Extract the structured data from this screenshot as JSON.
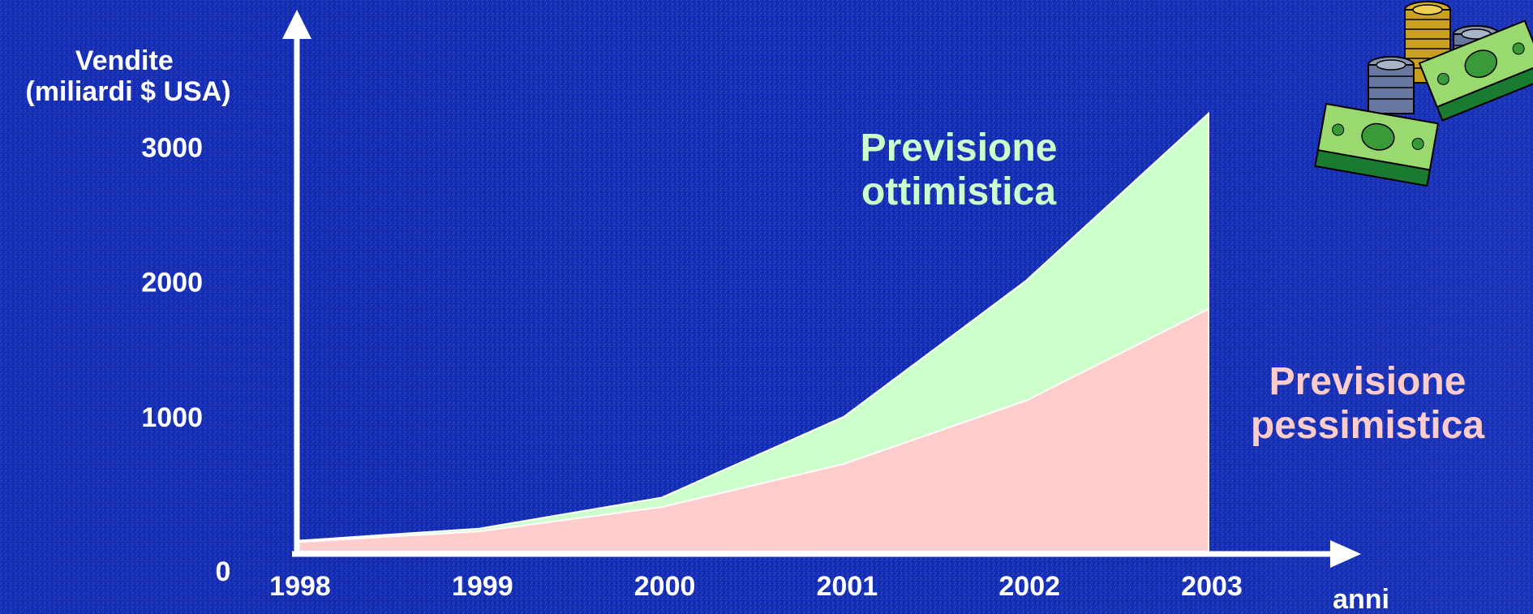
{
  "chart_data": {
    "type": "area",
    "title": "",
    "ylabel": [
      "Vendite",
      "(miliardi $ USA)"
    ],
    "xlabel": "anni",
    "x": [
      "1998",
      "1999",
      "2000",
      "2001",
      "2002",
      "2003"
    ],
    "yticks": [
      "0",
      "1000",
      "2000",
      "3000"
    ],
    "ylim": [
      0,
      3350
    ],
    "grid": false,
    "series": [
      {
        "name": "Previsione ottimistica",
        "values": [
          80,
          170,
          400,
          1000,
          2010,
          3250
        ],
        "color": "#ccffcc",
        "label_lines": [
          "Previsione",
          "ottimistica"
        ]
      },
      {
        "name": "Previsione pessimistica",
        "values": [
          70,
          150,
          330,
          650,
          1120,
          1800
        ],
        "color": "#ffcccc",
        "label_lines": [
          "Previsione",
          "pessimistica"
        ]
      }
    ],
    "background": "#1530b8",
    "axis_color": "#ffffff",
    "decoration_icon": "money-coins-icon"
  }
}
